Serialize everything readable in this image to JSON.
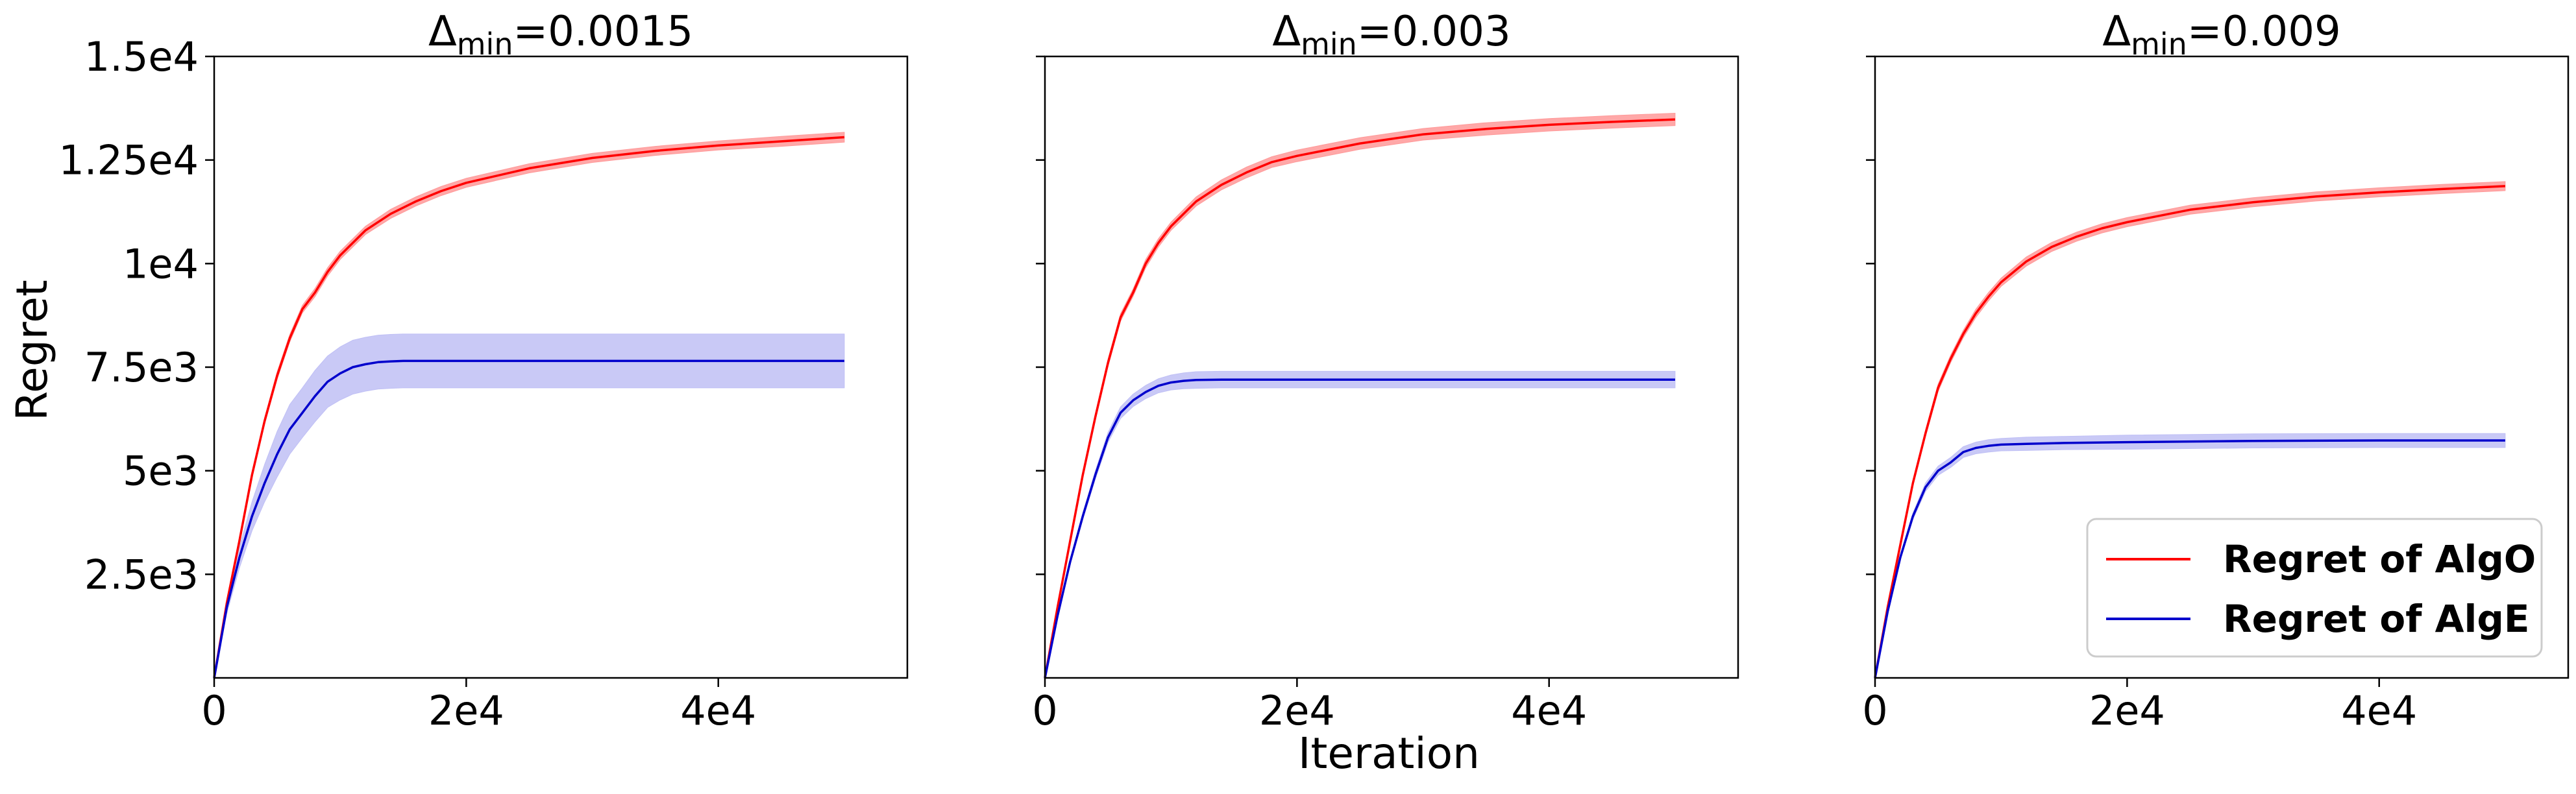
{
  "figure": {
    "ylabel": "Regret",
    "xlabel": "Iteration",
    "legend": {
      "placement": "lower-right of third panel",
      "entries": [
        {
          "label": "Regret of AlgO",
          "color": "#ff0000"
        },
        {
          "label": "Regret of AlgE",
          "color": "#0000cc"
        }
      ]
    }
  },
  "chart_data": [
    {
      "type": "line",
      "title": {
        "main": "Δ",
        "sub": "min",
        "value": "=0.0015"
      },
      "xlim": [
        0,
        55000
      ],
      "ylim": [
        0,
        15000
      ],
      "xticks": [
        {
          "value": 0,
          "label": "0"
        },
        {
          "value": 20000,
          "label": "2e4"
        },
        {
          "value": 40000,
          "label": "4e4"
        }
      ],
      "yticks": [
        {
          "value": 2500,
          "label": "2.5e3"
        },
        {
          "value": 5000,
          "label": "5e3"
        },
        {
          "value": 7500,
          "label": "7.5e3"
        },
        {
          "value": 10000,
          "label": "1e4"
        },
        {
          "value": 12500,
          "label": "1.25e4"
        },
        {
          "value": 15000,
          "label": "1.5e4"
        }
      ],
      "show_yticklabels": true,
      "series": [
        {
          "name": "Regret of AlgO",
          "color": "#ff0000",
          "band_color": "#ff9999",
          "x": [
            0,
            1000,
            2000,
            3000,
            4000,
            5000,
            6000,
            7000,
            8000,
            9000,
            10000,
            12000,
            14000,
            16000,
            18000,
            20000,
            25000,
            30000,
            35000,
            40000,
            45000,
            50000
          ],
          "y": [
            0,
            1800,
            3300,
            4900,
            6200,
            7300,
            8200,
            8900,
            9300,
            9800,
            10200,
            10800,
            11200,
            11500,
            11750,
            11950,
            12300,
            12550,
            12720,
            12850,
            12950,
            13050
          ],
          "band": [
            0,
            30,
            50,
            70,
            80,
            90,
            90,
            90,
            100,
            100,
            100,
            100,
            110,
            110,
            110,
            110,
            110,
            110,
            110,
            110,
            120,
            120
          ]
        },
        {
          "name": "Regret of AlgE",
          "color": "#0000cc",
          "band_color": "#bfbff5",
          "x": [
            0,
            1000,
            2000,
            3000,
            4000,
            5000,
            6000,
            7000,
            8000,
            9000,
            10000,
            11000,
            12000,
            13000,
            14000,
            15000,
            20000,
            30000,
            40000,
            50000
          ],
          "y": [
            0,
            1700,
            2900,
            3900,
            4700,
            5400,
            6000,
            6400,
            6800,
            7150,
            7350,
            7500,
            7570,
            7620,
            7640,
            7650,
            7650,
            7650,
            7650,
            7650
          ],
          "band": [
            0,
            150,
            250,
            350,
            450,
            550,
            600,
            600,
            620,
            620,
            640,
            650,
            650,
            650,
            650,
            650,
            650,
            650,
            650,
            650
          ]
        }
      ]
    },
    {
      "type": "line",
      "title": {
        "main": "Δ",
        "sub": "min",
        "value": "=0.003"
      },
      "xlim": [
        0,
        55000
      ],
      "ylim": [
        0,
        15000
      ],
      "xticks": [
        {
          "value": 0,
          "label": "0"
        },
        {
          "value": 20000,
          "label": "2e4"
        },
        {
          "value": 40000,
          "label": "4e4"
        }
      ],
      "yticks": [
        {
          "value": 2500,
          "label": "2.5e3"
        },
        {
          "value": 5000,
          "label": "5e3"
        },
        {
          "value": 7500,
          "label": "7.5e3"
        },
        {
          "value": 10000,
          "label": "1e4"
        },
        {
          "value": 12500,
          "label": "1.25e4"
        },
        {
          "value": 15000,
          "label": "1.5e4"
        }
      ],
      "show_yticklabels": false,
      "series": [
        {
          "name": "Regret of AlgO",
          "color": "#ff0000",
          "band_color": "#ff9999",
          "x": [
            0,
            1000,
            2000,
            3000,
            4000,
            5000,
            6000,
            7000,
            8000,
            9000,
            10000,
            12000,
            14000,
            16000,
            18000,
            20000,
            25000,
            30000,
            35000,
            40000,
            45000,
            50000
          ],
          "y": [
            0,
            1700,
            3300,
            4900,
            6300,
            7600,
            8700,
            9300,
            10000,
            10500,
            10900,
            11500,
            11900,
            12200,
            12450,
            12600,
            12900,
            13120,
            13250,
            13350,
            13420,
            13480
          ],
          "band": [
            0,
            30,
            50,
            70,
            80,
            90,
            90,
            90,
            100,
            100,
            100,
            110,
            120,
            130,
            130,
            140,
            140,
            140,
            150,
            150,
            150,
            150
          ]
        },
        {
          "name": "Regret of AlgE",
          "color": "#0000cc",
          "band_color": "#bfbff5",
          "x": [
            0,
            1000,
            2000,
            3000,
            4000,
            5000,
            6000,
            7000,
            8000,
            9000,
            10000,
            11000,
            12000,
            14000,
            16000,
            20000,
            30000,
            40000,
            50000
          ],
          "y": [
            0,
            1500,
            2800,
            3900,
            4900,
            5800,
            6400,
            6700,
            6900,
            7050,
            7130,
            7170,
            7190,
            7200,
            7200,
            7200,
            7200,
            7200,
            7200
          ],
          "band": [
            0,
            40,
            60,
            80,
            100,
            120,
            140,
            150,
            160,
            170,
            180,
            190,
            200,
            200,
            200,
            200,
            200,
            200,
            200
          ]
        }
      ]
    },
    {
      "type": "line",
      "title": {
        "main": "Δ",
        "sub": "min",
        "value": "=0.009"
      },
      "xlim": [
        0,
        55000
      ],
      "ylim": [
        0,
        15000
      ],
      "xticks": [
        {
          "value": 0,
          "label": "0"
        },
        {
          "value": 20000,
          "label": "2e4"
        },
        {
          "value": 40000,
          "label": "4e4"
        }
      ],
      "yticks": [
        {
          "value": 2500,
          "label": "2.5e3"
        },
        {
          "value": 5000,
          "label": "5e3"
        },
        {
          "value": 7500,
          "label": "7.5e3"
        },
        {
          "value": 10000,
          "label": "1e4"
        },
        {
          "value": 12500,
          "label": "1.25e4"
        },
        {
          "value": 15000,
          "label": "1.5e4"
        }
      ],
      "show_yticklabels": false,
      "series": [
        {
          "name": "Regret of AlgO",
          "color": "#ff0000",
          "band_color": "#ff9999",
          "x": [
            0,
            1000,
            2000,
            3000,
            4000,
            5000,
            6000,
            7000,
            8000,
            9000,
            10000,
            12000,
            14000,
            16000,
            18000,
            20000,
            25000,
            30000,
            35000,
            40000,
            45000,
            50000
          ],
          "y": [
            0,
            1700,
            3200,
            4700,
            5900,
            7000,
            7700,
            8300,
            8800,
            9200,
            9550,
            10050,
            10400,
            10650,
            10850,
            11000,
            11300,
            11480,
            11620,
            11720,
            11800,
            11870
          ],
          "band": [
            0,
            30,
            50,
            70,
            80,
            90,
            90,
            90,
            100,
            100,
            100,
            110,
            110,
            110,
            110,
            110,
            110,
            110,
            110,
            110,
            110,
            110
          ]
        },
        {
          "name": "Regret of AlgE",
          "color": "#0000cc",
          "band_color": "#bfbff5",
          "x": [
            0,
            1000,
            2000,
            3000,
            4000,
            5000,
            6000,
            7000,
            8000,
            9000,
            10000,
            12000,
            15000,
            20000,
            30000,
            40000,
            50000
          ],
          "y": [
            0,
            1600,
            2900,
            3900,
            4600,
            5000,
            5200,
            5450,
            5550,
            5600,
            5630,
            5650,
            5670,
            5690,
            5720,
            5730,
            5730
          ],
          "band": [
            0,
            40,
            60,
            80,
            100,
            110,
            120,
            130,
            140,
            150,
            150,
            160,
            160,
            170,
            170,
            170,
            170
          ]
        }
      ]
    }
  ]
}
